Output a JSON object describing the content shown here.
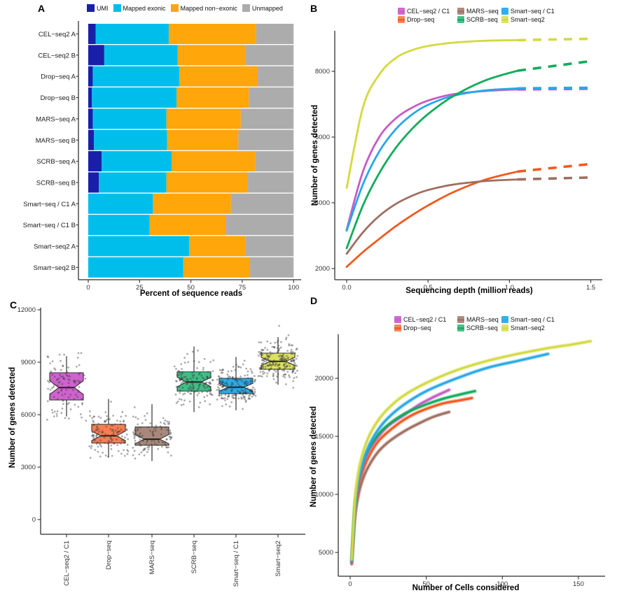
{
  "methods": [
    {
      "name": "CEL−seq2 / C1",
      "line": "#C65BC6",
      "fill": "#CE62CE"
    },
    {
      "name": "Drop−seq",
      "line": "#F3581E",
      "fill": "#F97E53"
    },
    {
      "name": "MARS−seq",
      "line": "#9E6F60",
      "fill": "#A8887B"
    },
    {
      "name": "SCRB−seq",
      "line": "#0FAD5A",
      "fill": "#41BD86"
    },
    {
      "name": "Smart−seq / C1",
      "line": "#27A8E6",
      "fill": "#2AACE9"
    },
    {
      "name": "Smart−seq2",
      "line": "#D3DA3F",
      "fill": "#DDE15F"
    }
  ],
  "chart_data": [
    {
      "id": "A",
      "panel_label": "A",
      "type": "bar",
      "orientation": "horizontal-stacked",
      "xlabel": "Percent of sequence reads",
      "x_ticks": [
        0,
        25,
        50,
        75,
        100
      ],
      "xlim": [
        0,
        100
      ],
      "legend": [
        "UMI",
        "Mapped exonic",
        "Mapped non−exonic",
        "Unmapped"
      ],
      "colors": [
        "#191FA6",
        "#00BEEC",
        "#FFA60A",
        "#ACACAC"
      ],
      "categories": [
        "CEL−seq2 A",
        "CEL−seq2 B",
        "Drop−seq A",
        "Drop−seq B",
        "MARS−seq A",
        "MARS−seq B",
        "SCRB−seq A",
        "SCRB−seq B",
        "Smart−seq / C1 A",
        "Smart−seq / C1 B",
        "Smart−seq2 A",
        "Smart−seq2 B"
      ],
      "series": [
        {
          "name": "UMI",
          "values": [
            3.6,
            7.8,
            2.2,
            1.8,
            2.2,
            2.8,
            6.5,
            5.2,
            0,
            0,
            0,
            0
          ]
        },
        {
          "name": "Mapped exonic",
          "values": [
            35.6,
            35.8,
            42.1,
            41.2,
            35.9,
            35.6,
            34.1,
            32.9,
            31.5,
            29.9,
            49.1,
            46.3
          ]
        },
        {
          "name": "Mapped non−exonic",
          "values": [
            42.6,
            33.0,
            38.2,
            35.2,
            36.2,
            34.7,
            40.7,
            39.7,
            38.0,
            37.1,
            27.4,
            32.3
          ]
        },
        {
          "name": "Unmapped",
          "values": [
            18.2,
            23.4,
            17.5,
            21.8,
            25.7,
            26.9,
            18.7,
            22.2,
            30.5,
            33.0,
            23.5,
            21.4
          ]
        }
      ]
    },
    {
      "id": "B",
      "panel_label": "B",
      "type": "line",
      "xlabel": "Sequencing depth (million reads)",
      "ylabel": "Number of genes detected",
      "x_ticks": [
        0,
        0.5,
        1.0,
        1.5
      ],
      "x_tick_labels": [
        "0.0",
        "0.5",
        "1.0",
        "1.5"
      ],
      "y_ticks": [
        2000,
        4000,
        6000,
        8000
      ],
      "xlim": [
        0,
        1.55
      ],
      "ylim": [
        1900,
        9300
      ],
      "legend_position": "top",
      "series": [
        {
          "name": "Drop−seq",
          "solid": [
            [
              0,
              2050
            ],
            [
              0.1,
              2500
            ],
            [
              0.2,
              2900
            ],
            [
              0.3,
              3280
            ],
            [
              0.4,
              3620
            ],
            [
              0.5,
              3920
            ],
            [
              0.65,
              4310
            ],
            [
              0.85,
              4700
            ],
            [
              1.05,
              4950
            ]
          ],
          "dashed": [
            [
              1.05,
              4950
            ],
            [
              1.5,
              5180
            ]
          ]
        },
        {
          "name": "MARS−seq",
          "solid": [
            [
              0,
              2450
            ],
            [
              0.1,
              3100
            ],
            [
              0.2,
              3600
            ],
            [
              0.3,
              3960
            ],
            [
              0.4,
              4210
            ],
            [
              0.5,
              4390
            ],
            [
              0.65,
              4550
            ],
            [
              0.85,
              4660
            ],
            [
              1.05,
              4710
            ]
          ],
          "dashed": [
            [
              1.05,
              4710
            ],
            [
              1.5,
              4770
            ]
          ]
        },
        {
          "name": "CEL−seq2 / C1",
          "solid": [
            [
              0,
              3180
            ],
            [
              0.1,
              4950
            ],
            [
              0.2,
              6000
            ],
            [
              0.3,
              6560
            ],
            [
              0.4,
              6890
            ],
            [
              0.5,
              7110
            ],
            [
              0.65,
              7300
            ],
            [
              0.85,
              7400
            ],
            [
              1.05,
              7450
            ]
          ],
          "dashed": [
            [
              1.05,
              7450
            ],
            [
              1.5,
              7470
            ]
          ]
        },
        {
          "name": "Smart−seq / C1",
          "solid": [
            [
              0,
              3150
            ],
            [
              0.1,
              4560
            ],
            [
              0.2,
              5560
            ],
            [
              0.3,
              6230
            ],
            [
              0.4,
              6680
            ],
            [
              0.5,
              6980
            ],
            [
              0.65,
              7250
            ],
            [
              0.85,
              7420
            ],
            [
              1.05,
              7480
            ]
          ],
          "dashed": [
            [
              1.05,
              7480
            ],
            [
              1.5,
              7500
            ]
          ]
        },
        {
          "name": "SCRB−seq",
          "solid": [
            [
              0,
              2620
            ],
            [
              0.1,
              3920
            ],
            [
              0.2,
              4900
            ],
            [
              0.3,
              5660
            ],
            [
              0.4,
              6240
            ],
            [
              0.5,
              6700
            ],
            [
              0.65,
              7230
            ],
            [
              0.85,
              7720
            ],
            [
              1.05,
              8020
            ]
          ],
          "dashed": [
            [
              1.05,
              8020
            ],
            [
              1.5,
              8310
            ]
          ]
        },
        {
          "name": "Smart−seq2",
          "solid": [
            [
              0,
              4450
            ],
            [
              0.1,
              6900
            ],
            [
              0.2,
              7900
            ],
            [
              0.3,
              8400
            ],
            [
              0.4,
              8640
            ],
            [
              0.5,
              8770
            ],
            [
              0.65,
              8870
            ],
            [
              0.85,
              8930
            ],
            [
              1.05,
              8950
            ]
          ],
          "dashed": [
            [
              1.05,
              8950
            ],
            [
              1.5,
              8990
            ]
          ]
        }
      ]
    },
    {
      "id": "C",
      "panel_label": "C",
      "type": "boxplot",
      "ylabel": "Number of genes detected",
      "y_ticks": [
        0,
        3000,
        6000,
        9000,
        12000
      ],
      "ylim": [
        0,
        12400
      ],
      "categories": [
        "CEL−seq2 / C1",
        "Drop−seq",
        "MARS−seq",
        "SCRB−seq",
        "Smart−seq / C1",
        "Smart−seq2"
      ],
      "boxes": [
        {
          "name": "CEL−seq2 / C1",
          "whisker_low": 5900,
          "q1": 6840,
          "median": 7550,
          "q3": 8400,
          "whisker_high": 9350,
          "points_n": 110,
          "points_min": 5650,
          "points_max": 9550
        },
        {
          "name": "Drop−seq",
          "whisker_low": 3550,
          "q1": 4380,
          "median": 4790,
          "q3": 5450,
          "whisker_high": 6900,
          "points_n": 130,
          "points_min": 3450,
          "points_max": 7050
        },
        {
          "name": "MARS−seq",
          "whisker_low": 3350,
          "q1": 4250,
          "median": 4600,
          "q3": 5300,
          "whisker_high": 6600,
          "points_n": 110,
          "points_min": 3300,
          "points_max": 6700
        },
        {
          "name": "SCRB−seq",
          "whisker_low": 6150,
          "q1": 7350,
          "median": 7870,
          "q3": 8450,
          "whisker_high": 9900,
          "points_n": 140,
          "points_min": 5980,
          "points_max": 10750
        },
        {
          "name": "Smart−seq / C1",
          "whisker_low": 6250,
          "q1": 7200,
          "median": 7570,
          "q3": 8080,
          "whisker_high": 9300,
          "points_n": 190,
          "points_min": 5350,
          "points_max": 9950
        },
        {
          "name": "Smart−seq2",
          "whisker_low": 7720,
          "q1": 8600,
          "median": 9050,
          "q3": 9520,
          "whisker_high": 10440,
          "points_n": 210,
          "points_min": 7350,
          "points_max": 11150
        }
      ]
    },
    {
      "id": "D",
      "panel_label": "D",
      "type": "line",
      "xlabel": "Number of Cells considered",
      "ylabel": "Number of genes detected",
      "x_ticks": [
        0,
        50,
        100,
        150
      ],
      "y_ticks": [
        5000,
        10000,
        15000,
        20000
      ],
      "xlim": [
        0,
        168
      ],
      "ylim": [
        3800,
        23600
      ],
      "legend_position": "top",
      "series": [
        {
          "name": "MARS−seq",
          "points": [
            [
              1,
              4000
            ],
            [
              3,
              7800
            ],
            [
              5,
              9700
            ],
            [
              8,
              11200
            ],
            [
              12,
              12400
            ],
            [
              18,
              13600
            ],
            [
              25,
              14500
            ],
            [
              35,
              15400
            ],
            [
              45,
              16100
            ],
            [
              55,
              16700
            ],
            [
              65,
              17100
            ]
          ]
        },
        {
          "name": "Drop−seq",
          "points": [
            [
              1,
              4100
            ],
            [
              3,
              8300
            ],
            [
              5,
              10300
            ],
            [
              8,
              11900
            ],
            [
              12,
              13200
            ],
            [
              18,
              14500
            ],
            [
              25,
              15400
            ],
            [
              35,
              16400
            ],
            [
              45,
              17100
            ],
            [
              60,
              17800
            ],
            [
              72,
              18100
            ],
            [
              80,
              18300
            ]
          ]
        },
        {
          "name": "CEL−seq2 / C1",
          "points": [
            [
              1,
              4200
            ],
            [
              3,
              8600
            ],
            [
              5,
              10700
            ],
            [
              8,
              12300
            ],
            [
              12,
              13700
            ],
            [
              18,
              14900
            ],
            [
              25,
              15900
            ],
            [
              35,
              16800
            ],
            [
              45,
              17700
            ],
            [
              55,
              18400
            ],
            [
              65,
              19000
            ]
          ]
        },
        {
          "name": "SCRB−seq",
          "points": [
            [
              1,
              4300
            ],
            [
              3,
              8900
            ],
            [
              5,
              11000
            ],
            [
              8,
              12600
            ],
            [
              12,
              13900
            ],
            [
              18,
              15100
            ],
            [
              25,
              16000
            ],
            [
              35,
              16900
            ],
            [
              45,
              17500
            ],
            [
              60,
              18200
            ],
            [
              72,
              18600
            ],
            [
              82,
              18900
            ]
          ]
        },
        {
          "name": "Smart−seq / C1",
          "points": [
            [
              1,
              4300
            ],
            [
              3,
              8700
            ],
            [
              5,
              10900
            ],
            [
              8,
              12600
            ],
            [
              12,
              14100
            ],
            [
              18,
              15500
            ],
            [
              25,
              16600
            ],
            [
              35,
              17700
            ],
            [
              50,
              18900
            ],
            [
              70,
              20000
            ],
            [
              90,
              20900
            ],
            [
              110,
              21500
            ],
            [
              130,
              22100
            ]
          ]
        },
        {
          "name": "Smart−seq2",
          "points": [
            [
              1,
              4400
            ],
            [
              3,
              9300
            ],
            [
              5,
              11600
            ],
            [
              8,
              13400
            ],
            [
              12,
              14900
            ],
            [
              18,
              16300
            ],
            [
              25,
              17400
            ],
            [
              35,
              18500
            ],
            [
              50,
              19600
            ],
            [
              70,
              20700
            ],
            [
              90,
              21500
            ],
            [
              110,
              22100
            ],
            [
              130,
              22600
            ],
            [
              145,
              22900
            ],
            [
              158,
              23200
            ]
          ]
        }
      ]
    }
  ]
}
